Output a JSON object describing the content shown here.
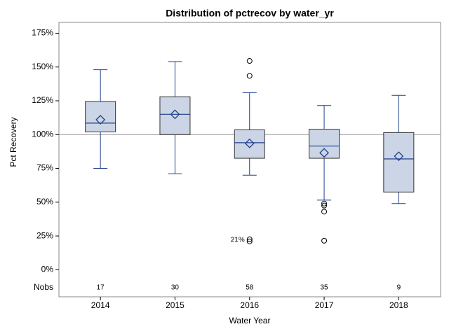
{
  "chart_data": {
    "type": "box",
    "title": "Distribution of pctrecov by water_yr",
    "x_label": "Water Year",
    "y_label": "Pct Recovery",
    "categories": [
      "2014",
      "2015",
      "2016",
      "2017",
      "2018"
    ],
    "whisker_low": [
      75,
      71,
      70,
      51.5,
      49
    ],
    "q1": [
      102,
      100,
      82.5,
      82.5,
      57.5
    ],
    "median": [
      108.5,
      115,
      94,
      91.5,
      82
    ],
    "q3": [
      124.5,
      128,
      103.5,
      104,
      101.5
    ],
    "whisker_high": [
      148,
      154,
      131,
      121.5,
      129
    ],
    "mean": [
      111,
      115,
      93.5,
      86.5,
      84
    ],
    "outliers": [
      [],
      [],
      [
        154.5,
        143.5,
        22.5,
        21
      ],
      [
        49,
        47.5,
        43,
        21.5
      ],
      []
    ],
    "nobs_label": "Nobs",
    "nobs": [
      17,
      30,
      58,
      35,
      9
    ],
    "annotation": "21%",
    "reference_line": 100,
    "box_color": "#cbd5e5",
    "line_color": "#1f3f8c",
    "ylim": [
      -20,
      183
    ],
    "yticks": [
      {
        "value": 0,
        "label": "0%"
      },
      {
        "value": 25,
        "label": "25%"
      },
      {
        "value": 50,
        "label": "50%"
      },
      {
        "value": 75,
        "label": "75%"
      },
      {
        "value": 100,
        "label": "100%"
      },
      {
        "value": 125,
        "label": "125%"
      },
      {
        "value": 150,
        "label": "150%"
      },
      {
        "value": 175,
        "label": "175%"
      }
    ]
  }
}
